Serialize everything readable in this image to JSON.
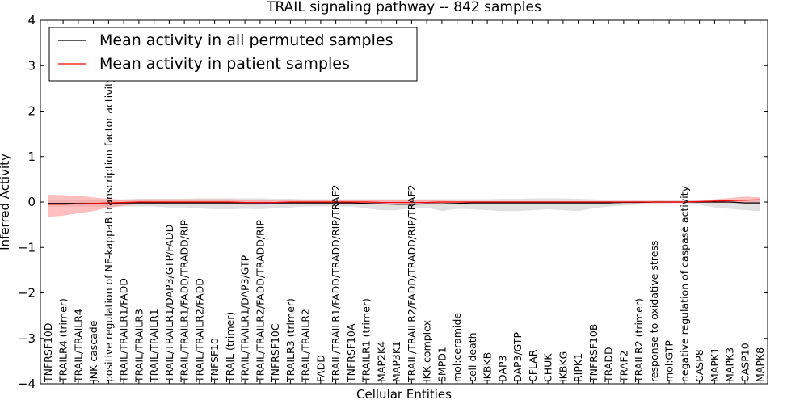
{
  "chart_data": {
    "type": "line",
    "title": "TRAIL signaling pathway -- 842 samples",
    "xlabel": "Cellular Entities",
    "ylabel": "Inferred Activity",
    "ylim": [
      -4,
      4
    ],
    "yticks": [
      "−4",
      "−3",
      "−2",
      "−1",
      "0",
      "1",
      "2",
      "3",
      "4"
    ],
    "grid": false,
    "legend_position": "top-left",
    "categories": [
      "TNFRSF10D",
      "TRAILR4 (trimer)",
      "TRAIL/TRAILR4",
      "JNK cascade",
      "positive regulation of NF-kappaB transcription factor activity",
      "TRAIL/TRAILR1/FADD",
      "TRAIL/TRAILR3",
      "TRAIL/TRAILR1",
      "TRAIL/TRAILR1/DAP3/GTP/FADD",
      "TRAIL/TRAILR1/FADD/TRADD/RIP",
      "TRAIL/TRAILR2/FADD",
      "TNFSF10",
      "TRAIL (trimer)",
      "TRAIL/TRAILR1/DAP3/GTP",
      "TRAIL/TRAILR2/FADD/TRADD/RIP",
      "TNFRSF10C",
      "TRAILR3 (trimer)",
      "TRAIL/TRAILR2",
      "FADD",
      "TRAIL/TRAILR1/FADD/TRADD/RIP/TRAF2",
      "TNFRSF10A",
      "TRAILR1 (trimer)",
      "MAP2K4",
      "MAP3K1",
      "TRAIL/TRAILR2/FADD/TRADD/RIP/TRAF2",
      "IKK complex",
      "SMPD1",
      "mol:ceramide",
      "cell death",
      "IKBKB",
      "DAP3",
      "DAP3/GTP",
      "CFLAR",
      "CHUK",
      "IKBKG",
      "RIPK1",
      "TNFRSF10B",
      "TRADD",
      "TRAF2",
      "TRAILR2 (trimer)",
      "response to oxidative stress",
      "mol:GTP",
      "negative regulation of caspase activity",
      "CASP8",
      "MAPK1",
      "MAPK3",
      "CASP10",
      "MAPK8"
    ],
    "series": [
      {
        "name": "Mean activity in all permuted samples",
        "color": "#000000",
        "band_color": "#c8c8c8",
        "values": [
          -0.03,
          -0.03,
          -0.03,
          -0.03,
          -0.03,
          -0.02,
          -0.02,
          -0.02,
          -0.02,
          -0.02,
          -0.02,
          -0.02,
          -0.02,
          -0.02,
          -0.02,
          -0.02,
          -0.02,
          -0.02,
          -0.02,
          -0.02,
          -0.02,
          -0.03,
          -0.04,
          -0.05,
          -0.05,
          -0.04,
          -0.04,
          -0.03,
          -0.02,
          -0.02,
          -0.02,
          -0.02,
          -0.02,
          -0.02,
          -0.02,
          -0.02,
          -0.02,
          -0.02,
          -0.01,
          -0.01,
          0.0,
          0.0,
          0.0,
          0.0,
          0.0,
          0.0,
          -0.02,
          -0.02
        ],
        "band_upper": [
          0.05,
          0.05,
          0.05,
          0.05,
          0.05,
          0.06,
          0.07,
          0.07,
          0.07,
          0.07,
          0.08,
          0.08,
          0.08,
          0.08,
          0.08,
          0.07,
          0.07,
          0.06,
          0.06,
          0.06,
          0.06,
          0.06,
          0.06,
          0.06,
          0.06,
          0.06,
          0.06,
          0.06,
          0.06,
          0.06,
          0.07,
          0.07,
          0.08,
          0.08,
          0.08,
          0.07,
          0.06,
          0.05,
          0.05,
          0.05,
          0.05,
          0.05,
          0.05,
          0.05,
          0.05,
          0.05,
          0.04,
          0.04
        ],
        "band_lower": [
          -0.1,
          -0.1,
          -0.1,
          -0.1,
          -0.12,
          -0.1,
          -0.1,
          -0.1,
          -0.12,
          -0.12,
          -0.14,
          -0.16,
          -0.16,
          -0.15,
          -0.16,
          -0.14,
          -0.12,
          -0.1,
          -0.1,
          -0.1,
          -0.1,
          -0.14,
          -0.18,
          -0.18,
          -0.14,
          -0.12,
          -0.2,
          -0.15,
          -0.16,
          -0.18,
          -0.2,
          -0.2,
          -0.18,
          -0.16,
          -0.18,
          -0.2,
          -0.14,
          -0.1,
          -0.08,
          -0.06,
          -0.04,
          -0.03,
          -0.02,
          -0.06,
          -0.12,
          -0.15,
          -0.18,
          -0.2
        ]
      },
      {
        "name": "Mean activity in patient samples",
        "color": "#ff0000",
        "band_color": "#ff8080",
        "values": [
          -0.05,
          -0.05,
          -0.04,
          -0.03,
          -0.02,
          -0.01,
          0.0,
          0.0,
          0.0,
          0.0,
          0.0,
          0.0,
          0.0,
          -0.01,
          -0.01,
          -0.01,
          0.0,
          0.0,
          0.0,
          0.0,
          0.0,
          0.0,
          -0.01,
          -0.01,
          -0.01,
          -0.01,
          0.0,
          0.0,
          0.0,
          0.0,
          0.0,
          0.0,
          0.0,
          0.0,
          0.0,
          0.0,
          0.0,
          0.0,
          0.0,
          0.0,
          0.0,
          0.0,
          0.0,
          0.01,
          0.02,
          0.03,
          0.04,
          0.05
        ],
        "band_upper": [
          0.16,
          0.15,
          0.14,
          0.1,
          0.07,
          0.05,
          0.06,
          0.06,
          0.06,
          0.06,
          0.06,
          0.06,
          0.06,
          0.05,
          0.05,
          0.04,
          0.04,
          0.04,
          0.04,
          0.04,
          0.05,
          0.05,
          0.04,
          0.04,
          0.04,
          0.04,
          0.03,
          0.02,
          0.02,
          0.02,
          0.02,
          0.02,
          0.02,
          0.02,
          0.02,
          0.02,
          0.02,
          0.02,
          0.02,
          0.02,
          0.02,
          0.02,
          0.02,
          0.03,
          0.06,
          0.09,
          0.12,
          0.1
        ],
        "band_lower": [
          -0.33,
          -0.3,
          -0.25,
          -0.2,
          -0.12,
          -0.08,
          -0.05,
          -0.05,
          -0.05,
          -0.05,
          -0.05,
          -0.05,
          -0.05,
          -0.06,
          -0.06,
          -0.05,
          -0.04,
          -0.04,
          -0.04,
          -0.04,
          -0.04,
          -0.05,
          -0.05,
          -0.05,
          -0.05,
          -0.05,
          -0.03,
          -0.02,
          -0.02,
          -0.02,
          -0.02,
          -0.02,
          -0.02,
          -0.02,
          -0.02,
          -0.02,
          -0.02,
          -0.02,
          -0.02,
          -0.02,
          -0.02,
          -0.02,
          -0.02,
          -0.02,
          -0.02,
          -0.02,
          -0.02,
          -0.02
        ]
      }
    ]
  }
}
